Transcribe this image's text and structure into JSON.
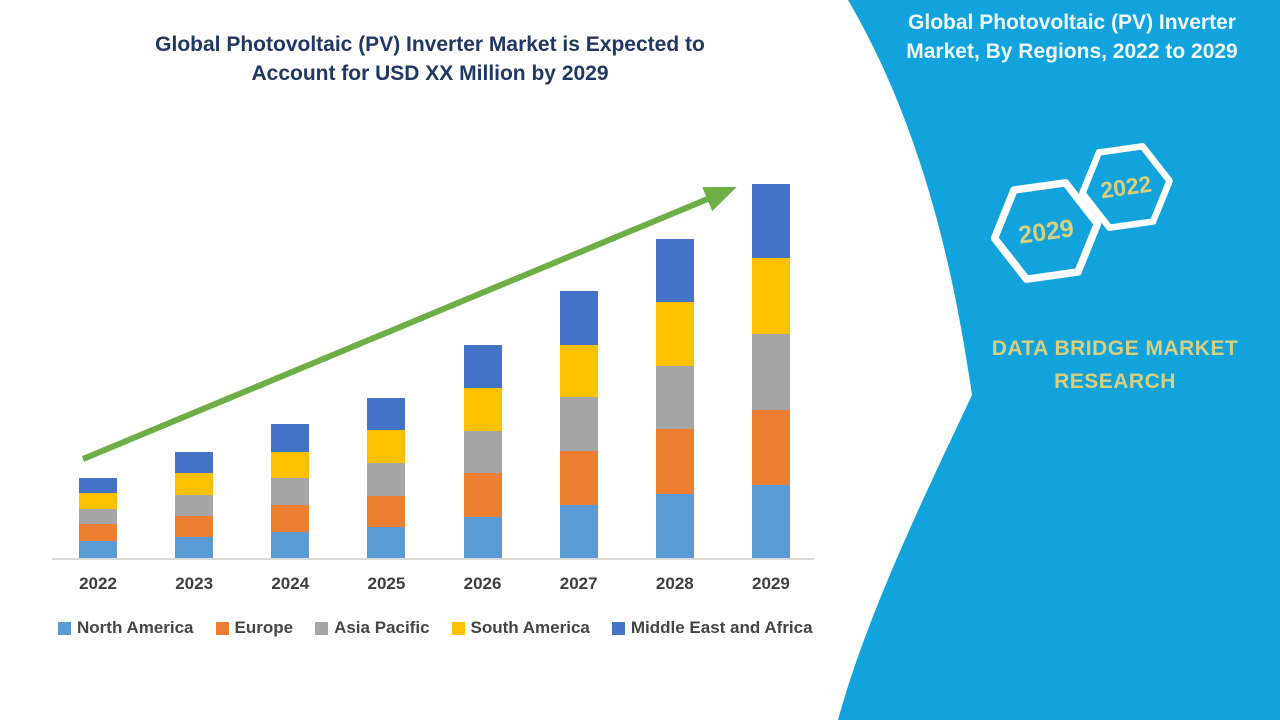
{
  "chart": {
    "title_lines": [
      "Global Photovoltaic (PV) Inverter Market is Expected to",
      "Account for USD XX Million by 2029"
    ],
    "title_color": "#1F3864"
  },
  "chart_data": {
    "type": "bar",
    "stacked": true,
    "title": "Global Photovoltaic (PV) Inverter Market is Expected to Account for USD XX Million by 2029",
    "xlabel": "",
    "ylabel": "",
    "y_axis_visible": false,
    "note": "Y-axis is unlabeled (values shown as USD XX Million); series values below are relative estimates read from bar pixel heights",
    "ylim": [
      0,
      400
    ],
    "grid": false,
    "legend_position": "bottom",
    "categories": [
      "2022",
      "2023",
      "2024",
      "2025",
      "2026",
      "2027",
      "2028",
      "2029"
    ],
    "series": [
      {
        "name": "North America",
        "color": "#5B9BD5",
        "values": [
          18,
          22,
          27,
          32,
          42,
          54,
          65,
          74
        ]
      },
      {
        "name": "Europe",
        "color": "#ED7D31",
        "values": [
          17,
          21,
          27,
          31,
          44,
          54,
          65,
          75
        ]
      },
      {
        "name": "Asia Pacific",
        "color": "#A5A5A5",
        "values": [
          15,
          21,
          27,
          33,
          42,
          54,
          63,
          76
        ]
      },
      {
        "name": "South America",
        "color": "#FFC000",
        "values": [
          16,
          22,
          26,
          33,
          43,
          52,
          64,
          76
        ]
      },
      {
        "name": "Middle East and Africa",
        "color": "#4472C4",
        "values": [
          15,
          21,
          28,
          32,
          43,
          54,
          63,
          74
        ]
      }
    ],
    "totals": [
      81,
      107,
      135,
      161,
      214,
      268,
      320,
      375
    ],
    "trend_arrow": {
      "present": true,
      "color": "#6FAE46",
      "direction": "up-right"
    }
  },
  "right_panel": {
    "background_color": "#13A3DC",
    "title_lines": [
      "Global Photovoltaic (PV) Inverter",
      "Market, By Regions, 2022 to 2029"
    ],
    "hexagons": [
      {
        "label": "2029"
      },
      {
        "label": "2022"
      }
    ],
    "brand_lines": [
      "DATA BRIDGE MARKET",
      "RESEARCH"
    ],
    "accent_text_color": "#D8CF7F"
  }
}
